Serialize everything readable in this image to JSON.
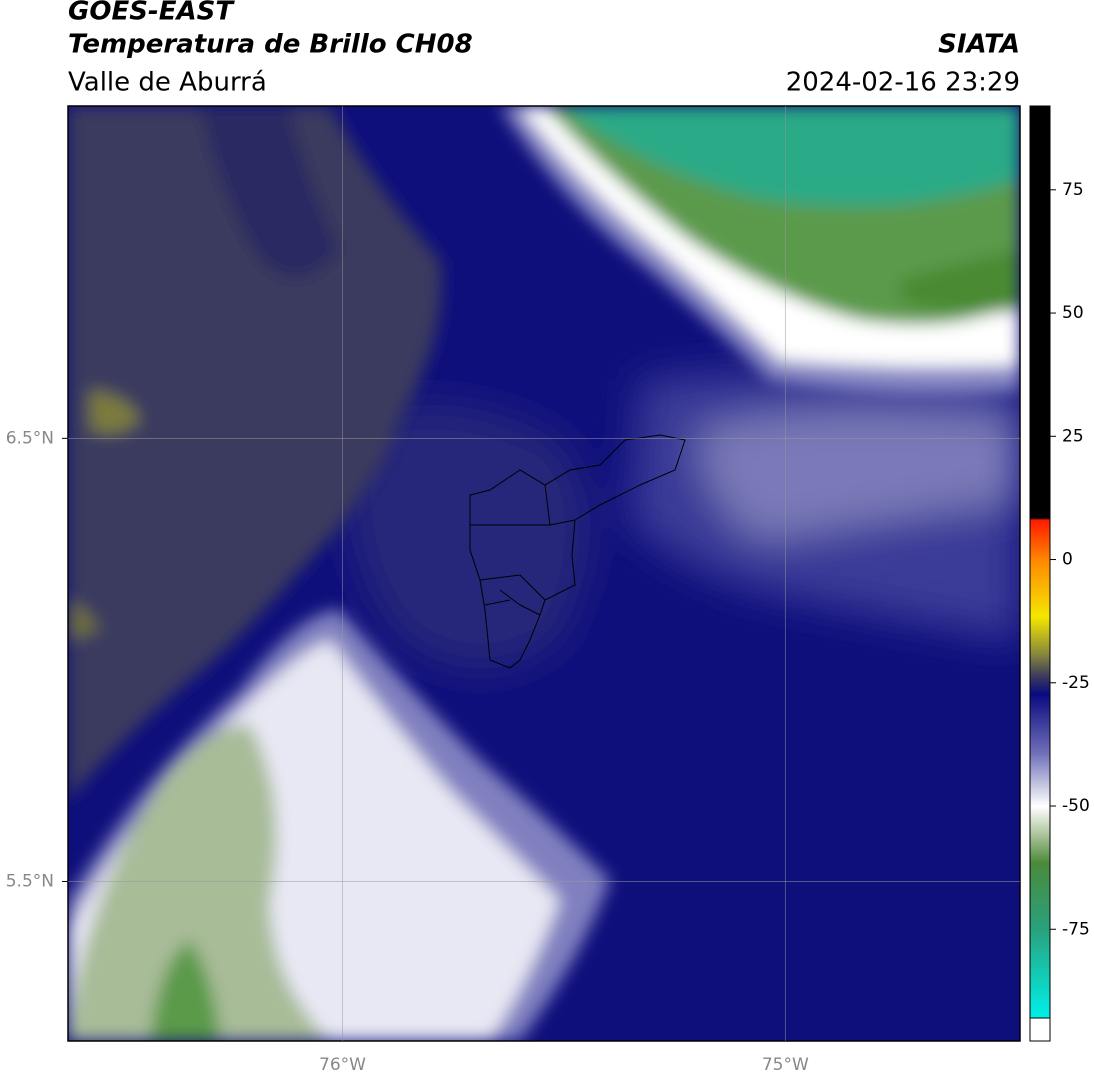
{
  "header": {
    "title": "GOES-EAST",
    "subtitle": "Temperatura de Brillo CH08",
    "region": "Valle de Aburrá",
    "source": "SIATA",
    "timestamp": "2024-02-16 23:29"
  },
  "map": {
    "xlim": [
      -76.62,
      -74.47
    ],
    "ylim": [
      5.14,
      7.25
    ],
    "xticks": [
      {
        "value": -76,
        "label": "76°W"
      },
      {
        "value": -75,
        "label": "75°W"
      }
    ],
    "yticks": [
      {
        "value": 5.5,
        "label": "5.5°N"
      },
      {
        "value": 6.5,
        "label": "6.5°N"
      }
    ],
    "grid": true
  },
  "colorbar": {
    "lim": [
      -93,
      92
    ],
    "ticks": [
      -75,
      -50,
      -25,
      0,
      25,
      50,
      75
    ]
  }
}
